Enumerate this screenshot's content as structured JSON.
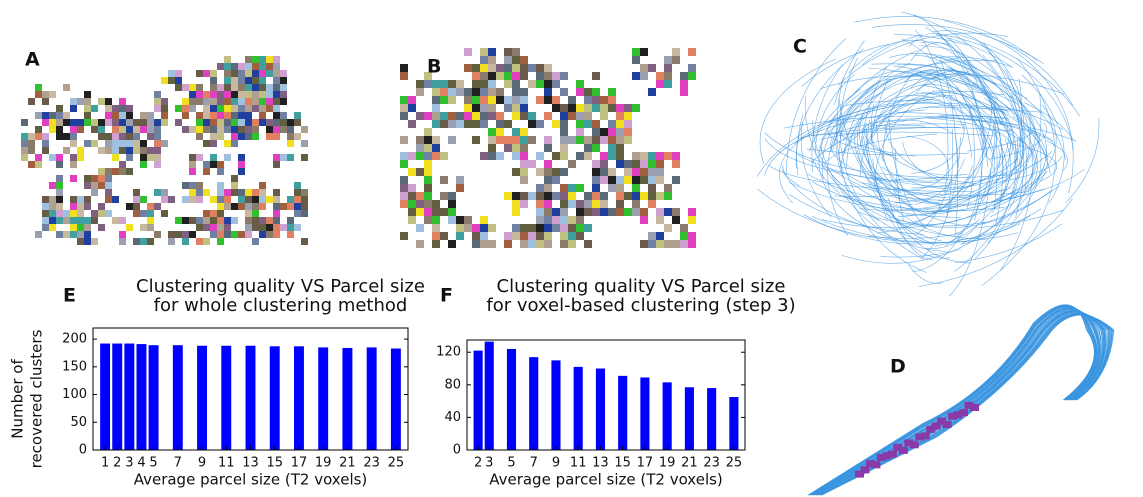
{
  "panels": {
    "labels": [
      "A",
      "B",
      "C",
      "D"
    ]
  },
  "chart_data": [
    {
      "type": "bar",
      "panel_label": "E",
      "title": [
        "Clustering quality VS Parcel size",
        "for whole clustering method"
      ],
      "ylabel": [
        "Number of",
        "recovered clusters"
      ],
      "xlabel": "Average parcel size  (T2 voxels)",
      "x": [
        1,
        2,
        3,
        4,
        5,
        7,
        9,
        11,
        13,
        15,
        17,
        19,
        21,
        23,
        25
      ],
      "values": [
        192,
        192,
        192,
        191,
        189,
        189,
        188,
        188,
        188,
        187,
        187,
        185,
        184,
        185,
        183
      ],
      "color": "#0000ff",
      "xlim": [
        0,
        26
      ],
      "ylim": [
        0,
        220
      ],
      "xticks": [
        1,
        2,
        3,
        4,
        5,
        7,
        9,
        11,
        13,
        15,
        17,
        19,
        21,
        23,
        25
      ],
      "yticks": [
        0,
        50,
        100,
        150,
        200
      ]
    },
    {
      "type": "bar",
      "panel_label": "F",
      "title": [
        "Clustering quality VS Parcel size",
        "for voxel-based clustering (step 3)"
      ],
      "xlabel": "Average parcel size (T2 voxels)",
      "x": [
        2,
        3,
        5,
        7,
        9,
        11,
        13,
        15,
        17,
        19,
        21,
        23,
        25
      ],
      "values": [
        122,
        133,
        124,
        114,
        110,
        102,
        100,
        91,
        89,
        83,
        77,
        76,
        65
      ],
      "color": "#0000ff",
      "xlim": [
        1,
        26
      ],
      "ylim": [
        0,
        135
      ],
      "xticks": [
        2,
        3,
        5,
        7,
        9,
        11,
        13,
        15,
        17,
        19,
        21,
        23,
        25
      ],
      "yticks": [
        0,
        40,
        80,
        120
      ]
    }
  ]
}
